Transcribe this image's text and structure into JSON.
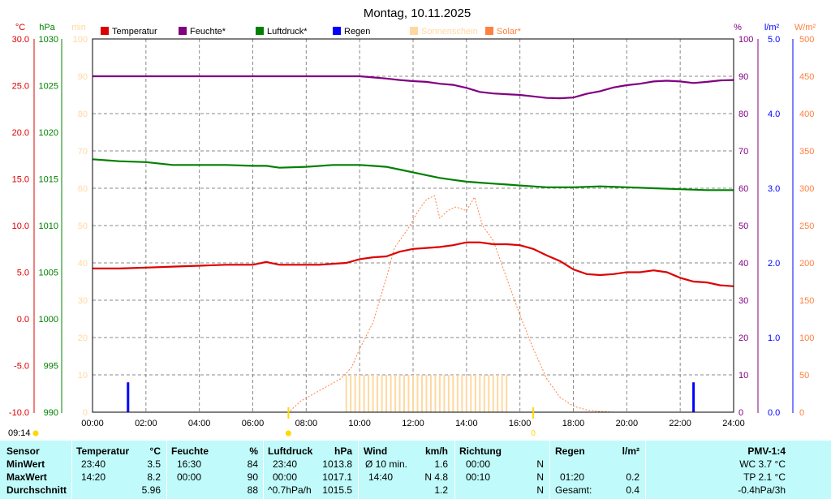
{
  "title": "Montag, 10.11.2025",
  "units": {
    "temp": "°C",
    "pressure": "hPa",
    "minutes": "min",
    "humidity": "%",
    "rain": "l/m²",
    "solar": "W/m²"
  },
  "legend": [
    {
      "label": "Temperatur",
      "color": "#dd0000"
    },
    {
      "label": "Feuchte*",
      "color": "#800080"
    },
    {
      "label": "Luftdruck*",
      "color": "#008000"
    },
    {
      "label": "Regen",
      "color": "#0000ff"
    },
    {
      "label": "Sonnenschein",
      "color": "#ffd8a0"
    },
    {
      "label": "Solar*",
      "color": "#ff8040"
    }
  ],
  "axes": {
    "x_ticks": [
      "00:00",
      "02:00",
      "04:00",
      "06:00",
      "08:00",
      "10:00",
      "12:00",
      "14:00",
      "16:00",
      "18:00",
      "20:00",
      "22:00",
      "24:00"
    ],
    "temp_ticks": [
      "-10.0",
      "-5.0",
      "0.0",
      "5.0",
      "10.0",
      "15.0",
      "20.0",
      "25.0",
      "30.0"
    ],
    "pressure_ticks": [
      "990",
      "995",
      "1000",
      "1005",
      "1010",
      "1015",
      "1020",
      "1025",
      "1030"
    ],
    "min_ticks": [
      "0",
      "10",
      "20",
      "30",
      "40",
      "50",
      "60",
      "70",
      "80",
      "90",
      "100"
    ],
    "hum_ticks": [
      "0",
      "10",
      "20",
      "30",
      "40",
      "50",
      "60",
      "70",
      "80",
      "90",
      "100"
    ],
    "rain_ticks": [
      "0.0",
      "1.0",
      "2.0",
      "3.0",
      "4.0",
      "5.0"
    ],
    "solar_ticks": [
      "0",
      "50",
      "100",
      "150",
      "200",
      "250",
      "300",
      "350",
      "400",
      "450",
      "500"
    ]
  },
  "sun_times": {
    "sunrise": "07:20",
    "sunset": "16:30",
    "current": "09:14",
    "sunset_label": "0"
  },
  "chart_data": {
    "type": "line",
    "title": "Montag, 10.11.2025",
    "x_unit": "hour",
    "xlim": [
      0,
      24
    ],
    "grid": true,
    "series": [
      {
        "name": "Temperatur",
        "axis": "temp",
        "ylim": [
          -10,
          30
        ],
        "color": "#dd0000",
        "x": [
          0,
          1,
          2,
          3,
          4,
          5,
          5.5,
          6,
          6.5,
          7,
          8,
          8.5,
          9,
          9.5,
          10,
          10.5,
          11,
          11.5,
          12,
          12.5,
          13,
          13.5,
          14,
          14.5,
          15,
          15.5,
          16,
          16.5,
          17,
          17.5,
          18,
          18.5,
          19,
          19.5,
          20,
          20.5,
          21,
          21.5,
          22,
          22.5,
          23,
          23.5,
          24
        ],
        "y": [
          5.4,
          5.4,
          5.5,
          5.6,
          5.7,
          5.8,
          5.8,
          5.8,
          6.1,
          5.8,
          5.8,
          5.8,
          5.9,
          6.0,
          6.4,
          6.6,
          6.7,
          7.2,
          7.5,
          7.6,
          7.7,
          7.9,
          8.2,
          8.2,
          8.0,
          8.0,
          7.9,
          7.5,
          6.8,
          6.2,
          5.3,
          4.8,
          4.7,
          4.8,
          5.0,
          5.0,
          5.2,
          5.0,
          4.4,
          4.0,
          3.9,
          3.6,
          3.5
        ]
      },
      {
        "name": "Feuchte*",
        "axis": "hum",
        "ylim": [
          0,
          100
        ],
        "color": "#800080",
        "x": [
          0,
          2,
          4,
          6,
          8,
          10,
          10.5,
          11,
          11.5,
          12,
          12.5,
          13,
          13.5,
          14,
          14.5,
          15,
          15.5,
          16,
          16.5,
          17,
          17.5,
          18,
          18.5,
          19,
          19.5,
          20,
          20.5,
          21,
          21.5,
          22,
          22.5,
          23,
          23.5,
          24
        ],
        "y": [
          90,
          90,
          90,
          90,
          90,
          90,
          89.7,
          89.4,
          89,
          88.7,
          88.5,
          88,
          87.7,
          86.9,
          85.8,
          85.4,
          85.2,
          85.0,
          84.6,
          84.2,
          84.1,
          84.3,
          85.3,
          86,
          87,
          87.6,
          88,
          88.6,
          88.8,
          88.6,
          88.2,
          88.5,
          88.9,
          89
        ]
      },
      {
        "name": "Luftdruck*",
        "axis": "pressure",
        "ylim": [
          990,
          1030
        ],
        "color": "#008000",
        "x": [
          0,
          1,
          2,
          3,
          4,
          5,
          6,
          6.5,
          7,
          8,
          9,
          10,
          10.5,
          11,
          11.5,
          12,
          12.5,
          13,
          13.5,
          14,
          14.5,
          15,
          15.5,
          16,
          16.5,
          17,
          18,
          19,
          20,
          21,
          22,
          23,
          24
        ],
        "y": [
          1017.1,
          1016.9,
          1016.8,
          1016.5,
          1016.5,
          1016.5,
          1016.4,
          1016.4,
          1016.2,
          1016.3,
          1016.5,
          1016.5,
          1016.4,
          1016.3,
          1016.0,
          1015.7,
          1015.4,
          1015.1,
          1014.9,
          1014.7,
          1014.6,
          1014.5,
          1014.4,
          1014.3,
          1014.2,
          1014.1,
          1014.1,
          1014.2,
          1014.1,
          1014.0,
          1013.9,
          1013.8,
          1013.8
        ]
      },
      {
        "name": "Solar*",
        "axis": "solar",
        "ylim": [
          0,
          500
        ],
        "color": "#ff8040",
        "style": "dotted",
        "x": [
          7.4,
          7.8,
          8.3,
          8.8,
          9.3,
          9.7,
          10.0,
          10.5,
          11.0,
          11.3,
          11.8,
          12.2,
          12.5,
          12.8,
          13.0,
          13.3,
          13.6,
          14.0,
          14.3,
          14.6,
          15.0,
          15.5,
          16.0,
          16.5,
          17.0,
          17.5,
          18.0,
          18.5,
          19.0,
          19.5
        ],
        "y": [
          2,
          15,
          25,
          35,
          45,
          60,
          85,
          120,
          180,
          220,
          245,
          270,
          285,
          290,
          260,
          270,
          275,
          270,
          288,
          250,
          230,
          180,
          130,
          85,
          45,
          20,
          8,
          3,
          1,
          0
        ]
      },
      {
        "name": "Regen",
        "axis": "rain",
        "ylim": [
          0,
          5
        ],
        "color": "#0000ff",
        "type": "bar",
        "x": [
          1.33,
          22.5
        ],
        "y": [
          0.2,
          0.2
        ]
      },
      {
        "name": "Sonnenschein",
        "axis": "minutes",
        "ylim": [
          0,
          100
        ],
        "color": "#ffd8a0",
        "type": "bar",
        "x_start": 9.5,
        "x_end": 15.5,
        "y": 10
      }
    ]
  },
  "stats": {
    "headers": {
      "sensor": "Sensor",
      "temp": "Temperatur",
      "temp_unit": "°C",
      "hum": "Feuchte",
      "hum_unit": "%",
      "press": "Luftdruck",
      "press_unit": "hPa",
      "wind": "Wind",
      "wind_unit": "km/h",
      "dir": "Richtung",
      "rain": "Regen",
      "rain_unit": "l/m²",
      "pmv": "PMV-1:4"
    },
    "min": {
      "label": "MinWert",
      "temp_time": "23:40",
      "temp": "3.5",
      "hum_time": "16:30",
      "hum": "84",
      "press_time": "23:40",
      "press": "1013.8",
      "wind_time": "Ø 10 min.",
      "wind": "1.6",
      "dir_time": "00:00",
      "dir": "N",
      "pmv": "WC 3.7 °C"
    },
    "max": {
      "label": "MaxWert",
      "temp_time": "14:20",
      "temp": "8.2",
      "hum_time": "00:00",
      "hum": "90",
      "press_time": "00:00",
      "press": "1017.1",
      "wind_time": "14:40",
      "wind": "N 4.8",
      "dir_time": "00:10",
      "dir": "N",
      "rain_time": "01:20",
      "rain": "0.2",
      "pmv": "TP 2.1 °C"
    },
    "avg": {
      "label": "Durchschnitt",
      "temp": "5.96",
      "hum": "88",
      "press_trend": "^0.7hPa/h",
      "press": "1015.5",
      "wind": "1.2",
      "dir": "N",
      "rain_label": "Gesamt:",
      "rain": "0.4",
      "pmv": "-0.4hPa/3h"
    }
  }
}
